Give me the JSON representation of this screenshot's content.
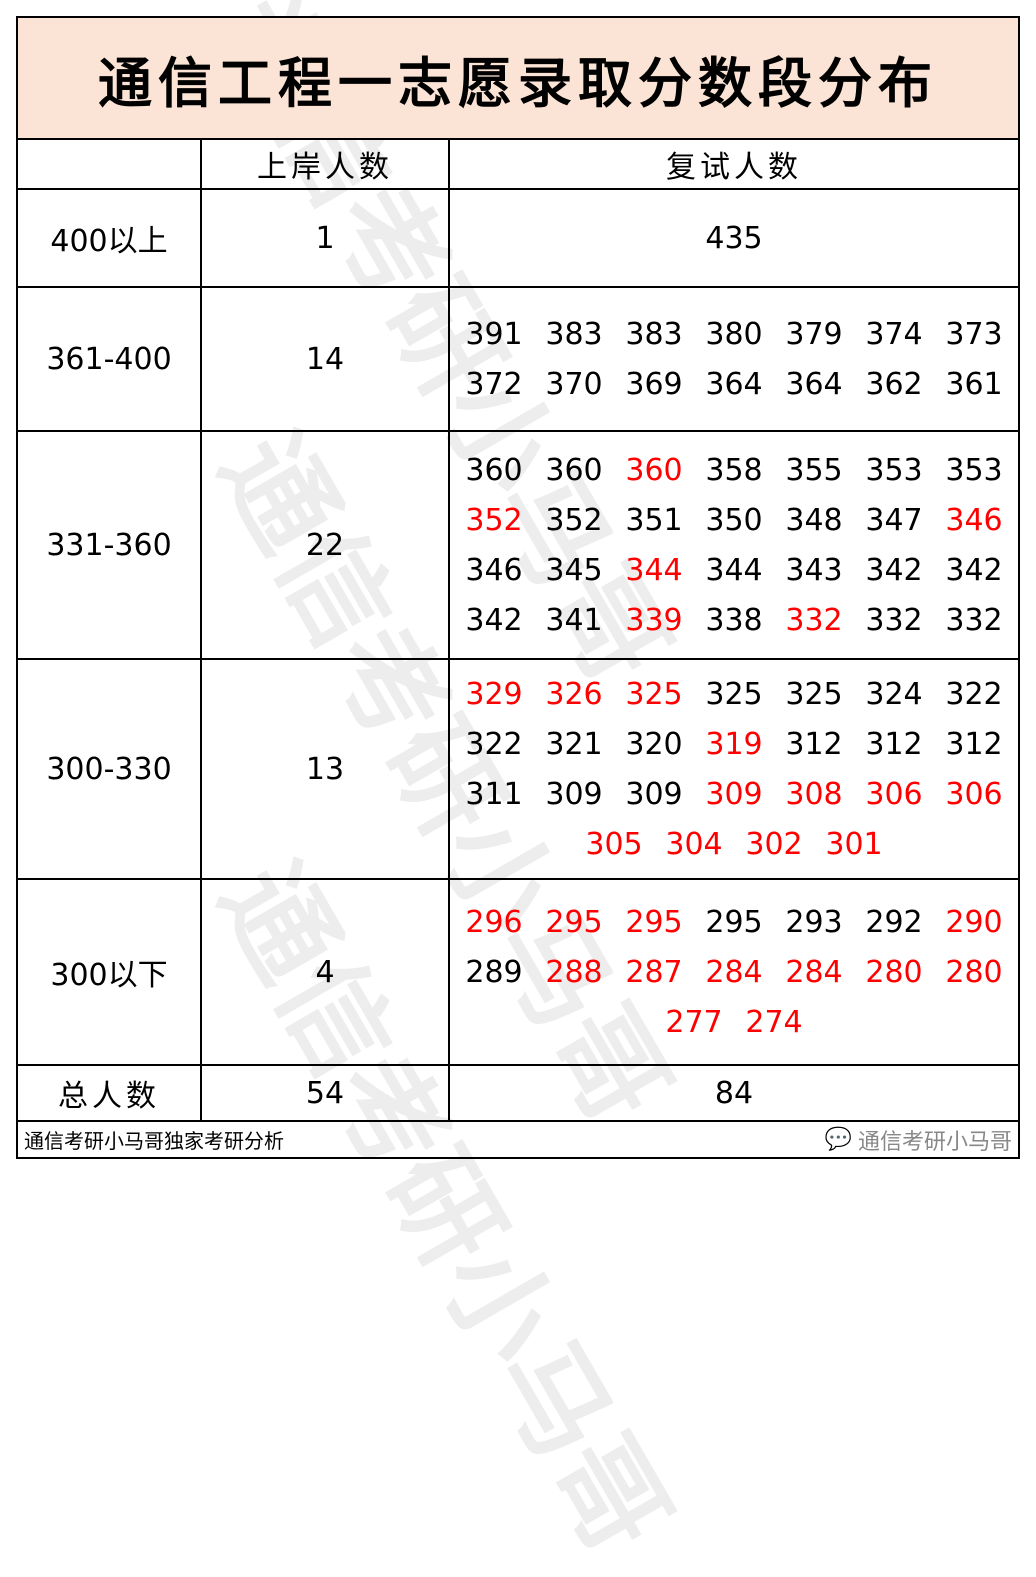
{
  "title": "通信工程一志愿录取分数段分布",
  "header": {
    "range": "",
    "admitted": "上岸人数",
    "retest": "复试人数"
  },
  "rows": [
    {
      "range": "400以上",
      "admitted": "1",
      "scores": [
        [
          {
            "v": "435",
            "red": false
          }
        ]
      ]
    },
    {
      "range": "361-400",
      "admitted": "14",
      "scores": [
        [
          {
            "v": "391",
            "red": false
          },
          {
            "v": "383",
            "red": false
          },
          {
            "v": "383",
            "red": false
          },
          {
            "v": "380",
            "red": false
          },
          {
            "v": "379",
            "red": false
          },
          {
            "v": "374",
            "red": false
          },
          {
            "v": "373",
            "red": false
          }
        ],
        [
          {
            "v": "372",
            "red": false
          },
          {
            "v": "370",
            "red": false
          },
          {
            "v": "369",
            "red": false
          },
          {
            "v": "364",
            "red": false
          },
          {
            "v": "364",
            "red": false
          },
          {
            "v": "362",
            "red": false
          },
          {
            "v": "361",
            "red": false
          }
        ]
      ]
    },
    {
      "range": "331-360",
      "admitted": "22",
      "scores": [
        [
          {
            "v": "360",
            "red": false
          },
          {
            "v": "360",
            "red": false
          },
          {
            "v": "360",
            "red": true
          },
          {
            "v": "358",
            "red": false
          },
          {
            "v": "355",
            "red": false
          },
          {
            "v": "353",
            "red": false
          },
          {
            "v": "353",
            "red": false
          }
        ],
        [
          {
            "v": "352",
            "red": true
          },
          {
            "v": "352",
            "red": false
          },
          {
            "v": "351",
            "red": false
          },
          {
            "v": "350",
            "red": false
          },
          {
            "v": "348",
            "red": false
          },
          {
            "v": "347",
            "red": false
          },
          {
            "v": "346",
            "red": true
          }
        ],
        [
          {
            "v": "346",
            "red": false
          },
          {
            "v": "345",
            "red": false
          },
          {
            "v": "344",
            "red": true
          },
          {
            "v": "344",
            "red": false
          },
          {
            "v": "343",
            "red": false
          },
          {
            "v": "342",
            "red": false
          },
          {
            "v": "342",
            "red": false
          }
        ],
        [
          {
            "v": "342",
            "red": false
          },
          {
            "v": "341",
            "red": false
          },
          {
            "v": "339",
            "red": true
          },
          {
            "v": "338",
            "red": false
          },
          {
            "v": "332",
            "red": true
          },
          {
            "v": "332",
            "red": false
          },
          {
            "v": "332",
            "red": false
          }
        ]
      ]
    },
    {
      "range": "300-330",
      "admitted": "13",
      "scores": [
        [
          {
            "v": "329",
            "red": true
          },
          {
            "v": "326",
            "red": true
          },
          {
            "v": "325",
            "red": true
          },
          {
            "v": "325",
            "red": false
          },
          {
            "v": "325",
            "red": false
          },
          {
            "v": "324",
            "red": false
          },
          {
            "v": "322",
            "red": false
          }
        ],
        [
          {
            "v": "322",
            "red": false
          },
          {
            "v": "321",
            "red": false
          },
          {
            "v": "320",
            "red": false
          },
          {
            "v": "319",
            "red": true
          },
          {
            "v": "312",
            "red": false
          },
          {
            "v": "312",
            "red": false
          },
          {
            "v": "312",
            "red": false
          }
        ],
        [
          {
            "v": "311",
            "red": false
          },
          {
            "v": "309",
            "red": false
          },
          {
            "v": "309",
            "red": false
          },
          {
            "v": "309",
            "red": true
          },
          {
            "v": "308",
            "red": true
          },
          {
            "v": "306",
            "red": true
          },
          {
            "v": "306",
            "red": true
          }
        ],
        [
          {
            "v": "305",
            "red": true
          },
          {
            "v": "304",
            "red": true
          },
          {
            "v": "302",
            "red": true
          },
          {
            "v": "301",
            "red": true
          }
        ]
      ]
    },
    {
      "range": "300以下",
      "admitted": "4",
      "scores": [
        [
          {
            "v": "296",
            "red": true
          },
          {
            "v": "295",
            "red": true
          },
          {
            "v": "295",
            "red": true
          },
          {
            "v": "295",
            "red": false
          },
          {
            "v": "293",
            "red": false
          },
          {
            "v": "292",
            "red": false
          },
          {
            "v": "290",
            "red": true
          }
        ],
        [
          {
            "v": "289",
            "red": false
          },
          {
            "v": "288",
            "red": true
          },
          {
            "v": "287",
            "red": true
          },
          {
            "v": "284",
            "red": true
          },
          {
            "v": "284",
            "red": true
          },
          {
            "v": "280",
            "red": true
          },
          {
            "v": "280",
            "red": true
          }
        ],
        [
          {
            "v": "277",
            "red": true
          },
          {
            "v": "274",
            "red": true
          }
        ]
      ]
    }
  ],
  "total": {
    "label": "总人数",
    "admitted": "54",
    "retest": "84"
  },
  "footer": {
    "note": "通信考研小马哥独家考研分析",
    "brand": "通信考研小马哥",
    "brand_icon": "wechat-icon"
  },
  "watermark": "通信考研小马哥",
  "colors": {
    "title_bg": "#fbe4d5",
    "highlight": "#ff0000"
  }
}
